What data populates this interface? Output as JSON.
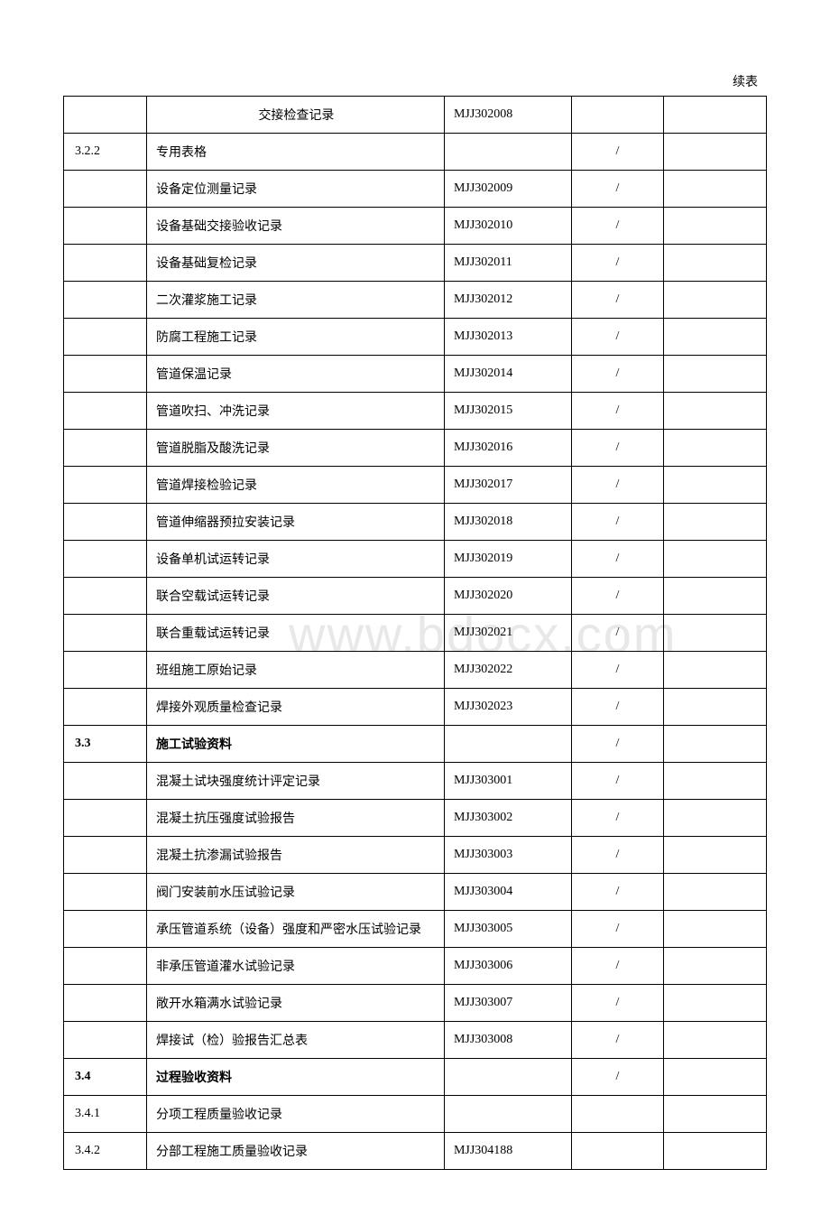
{
  "header": {
    "continuation": "续表"
  },
  "watermark": "www.bdocx.com",
  "columns": {
    "c0_width": 85,
    "c1_width": 305,
    "c2_width": 130,
    "c3_width": 95,
    "c4_width": 105
  },
  "colors": {
    "border": "#000000",
    "text": "#000000",
    "background": "#ffffff",
    "watermark": "#e8e8e8"
  },
  "rows": [
    {
      "index": "",
      "name": "交接检查记录",
      "code": "MJJ302008",
      "slash": "",
      "name_center": true
    },
    {
      "index": "3.2.2",
      "name": "专用表格",
      "code": "",
      "slash": "/"
    },
    {
      "index": "",
      "name": "设备定位测量记录",
      "code": "MJJ302009",
      "slash": "/"
    },
    {
      "index": "",
      "name": "设备基础交接验收记录",
      "code": "MJJ302010",
      "slash": "/"
    },
    {
      "index": "",
      "name": "设备基础复检记录",
      "code": "MJJ302011",
      "slash": "/"
    },
    {
      "index": "",
      "name": "二次灌浆施工记录",
      "code": "MJJ302012",
      "slash": "/"
    },
    {
      "index": "",
      "name": "防腐工程施工记录",
      "code": "MJJ302013",
      "slash": "/"
    },
    {
      "index": "",
      "name": "管道保温记录",
      "code": "MJJ302014",
      "slash": "/"
    },
    {
      "index": "",
      "name": "管道吹扫、冲洗记录",
      "code": "MJJ302015",
      "slash": "/"
    },
    {
      "index": "",
      "name": "管道脱脂及酸洗记录",
      "code": "MJJ302016",
      "slash": "/"
    },
    {
      "index": "",
      "name": "管道焊接检验记录",
      "code": "MJJ302017",
      "slash": "/"
    },
    {
      "index": "",
      "name": "管道伸缩器预拉安装记录",
      "code": "MJJ302018",
      "slash": "/"
    },
    {
      "index": "",
      "name": "设备单机试运转记录",
      "code": "MJJ302019",
      "slash": "/"
    },
    {
      "index": "",
      "name": "联合空载试运转记录",
      "code": "MJJ302020",
      "slash": "/"
    },
    {
      "index": "",
      "name": "联合重载试运转记录",
      "code": "MJJ302021",
      "slash": "/"
    },
    {
      "index": "",
      "name": "班组施工原始记录",
      "code": "MJJ302022",
      "slash": "/"
    },
    {
      "index": "",
      "name": "焊接外观质量检查记录",
      "code": "MJJ302023",
      "slash": "/"
    },
    {
      "index": "3.3",
      "name": "施工试验资料",
      "code": "",
      "slash": "/",
      "bold": true
    },
    {
      "index": "",
      "name": "混凝土试块强度统计评定记录",
      "code": "MJJ303001",
      "slash": "/"
    },
    {
      "index": "",
      "name": "混凝土抗压强度试验报告",
      "code": "MJJ303002",
      "slash": "/"
    },
    {
      "index": "",
      "name": "混凝土抗渗漏试验报告",
      "code": "MJJ303003",
      "slash": "/"
    },
    {
      "index": "",
      "name": "阀门安装前水压试验记录",
      "code": "MJJ303004",
      "slash": "/"
    },
    {
      "index": "",
      "name": "承压管道系统（设备）强度和严密水压试验记录",
      "code": "MJJ303005",
      "slash": "/"
    },
    {
      "index": "",
      "name": "非承压管道灌水试验记录",
      "code": "MJJ303006",
      "slash": "/"
    },
    {
      "index": "",
      "name": "敞开水箱满水试验记录",
      "code": "MJJ303007",
      "slash": "/"
    },
    {
      "index": "",
      "name": "焊接试（检）验报告汇总表",
      "code": "MJJ303008",
      "slash": "/"
    },
    {
      "index": "3.4",
      "name": "过程验收资料",
      "code": "",
      "slash": "/",
      "bold": true
    },
    {
      "index": "3.4.1",
      "name": "分项工程质量验收记录",
      "code": "",
      "slash": ""
    },
    {
      "index": "3.4.2",
      "name": "分部工程施工质量验收记录",
      "code": "MJJ304188",
      "slash": ""
    }
  ]
}
